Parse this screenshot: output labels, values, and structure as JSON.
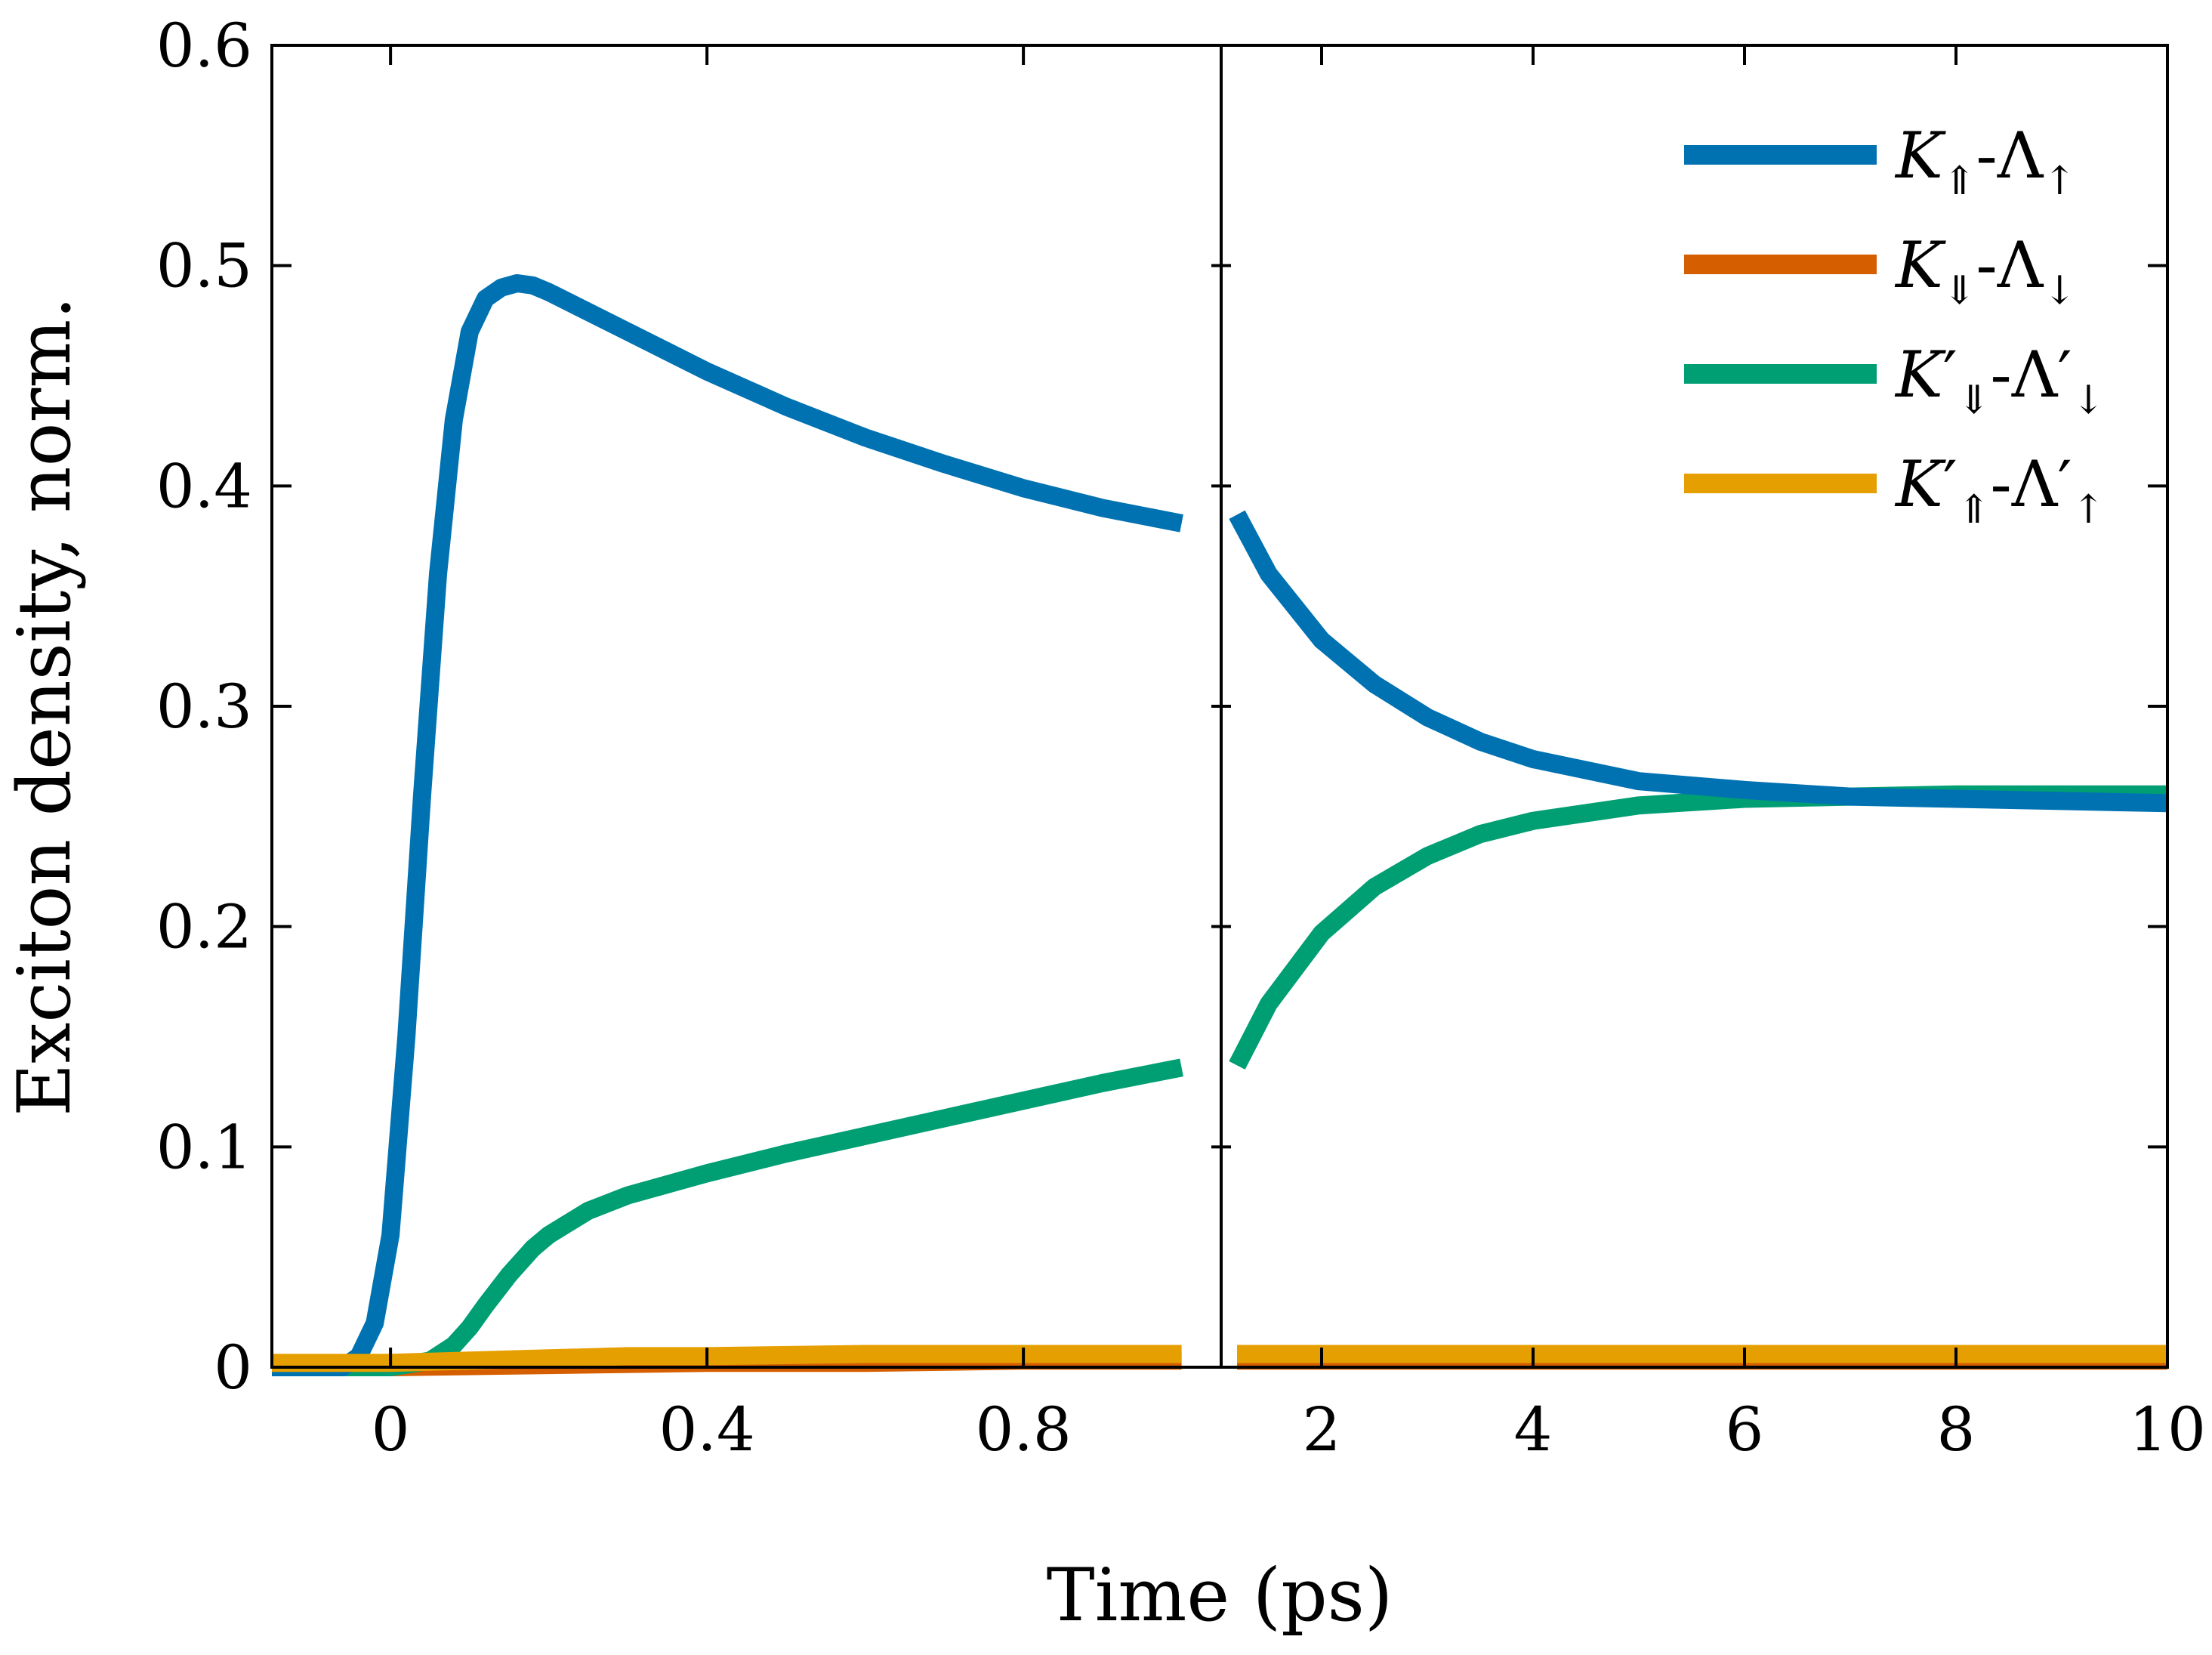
{
  "chart_data": {
    "type": "line",
    "xlabel": "Time (ps)",
    "ylabel": "Exciton density, norm.",
    "ylim": [
      0,
      0.6
    ],
    "yticks": [
      "0",
      "0.1",
      "0.2",
      "0.3",
      "0.4",
      "0.5",
      "0.6"
    ],
    "grid": false,
    "legend_position": "top-right",
    "panels": [
      {
        "name": "left",
        "xlim": [
          -0.15,
          1.05
        ],
        "xticks": [
          "0",
          "0.4",
          "0.8"
        ]
      },
      {
        "name": "right",
        "xlim": [
          1.05,
          10
        ],
        "xticks": [
          "2",
          "4",
          "6",
          "8",
          "10"
        ]
      }
    ],
    "series": [
      {
        "name": "K_⇑-Λ_↑",
        "legend": {
          "main1": "K",
          "sub1": "⇑",
          "mid": "-Λ",
          "sub2": "↑",
          "prime": false
        },
        "color": "#0072b2",
        "left_x": [
          -0.15,
          -0.1,
          -0.06,
          -0.04,
          -0.02,
          0.0,
          0.02,
          0.04,
          0.06,
          0.08,
          0.1,
          0.12,
          0.14,
          0.16,
          0.18,
          0.2,
          0.3,
          0.4,
          0.5,
          0.6,
          0.7,
          0.8,
          0.9,
          1.0
        ],
        "left_y": [
          0.0,
          0.0,
          0.0,
          0.005,
          0.02,
          0.06,
          0.15,
          0.26,
          0.36,
          0.43,
          0.47,
          0.485,
          0.49,
          0.492,
          0.491,
          0.488,
          0.47,
          0.452,
          0.436,
          0.422,
          0.41,
          0.399,
          0.39,
          0.383
        ],
        "right_x": [
          1.2,
          1.5,
          2.0,
          2.5,
          3.0,
          3.5,
          4.0,
          5.0,
          6.0,
          7.0,
          8.0,
          9.0,
          10.0
        ],
        "right_y": [
          0.387,
          0.36,
          0.33,
          0.31,
          0.295,
          0.284,
          0.276,
          0.266,
          0.262,
          0.259,
          0.258,
          0.257,
          0.256
        ]
      },
      {
        "name": "K_⇓-Λ_↓",
        "legend": {
          "main1": "K",
          "sub1": "⇓",
          "mid": "-Λ",
          "sub2": "↓",
          "prime": false
        },
        "color": "#d55e00",
        "left_x": [
          -0.15,
          0.0,
          0.2,
          0.4,
          0.6,
          0.8,
          1.0
        ],
        "left_y": [
          0.0,
          0.0,
          0.001,
          0.002,
          0.002,
          0.003,
          0.003
        ],
        "right_x": [
          1.2,
          4.0,
          10.0
        ],
        "right_y": [
          0.003,
          0.003,
          0.003
        ]
      },
      {
        "name": "K′_⇓-Λ′_↓",
        "legend": {
          "main1": "K",
          "sub1": "⇓",
          "mid": "-Λ",
          "sub2": "↓",
          "prime": true
        },
        "color": "#009e73",
        "left_x": [
          -0.15,
          0.0,
          0.05,
          0.08,
          0.1,
          0.12,
          0.15,
          0.18,
          0.2,
          0.25,
          0.3,
          0.4,
          0.5,
          0.6,
          0.7,
          0.8,
          0.9,
          1.0
        ],
        "left_y": [
          0.0,
          0.0,
          0.003,
          0.01,
          0.018,
          0.028,
          0.042,
          0.054,
          0.06,
          0.071,
          0.078,
          0.088,
          0.097,
          0.105,
          0.113,
          0.121,
          0.129,
          0.136
        ],
        "right_x": [
          1.2,
          1.5,
          2.0,
          2.5,
          3.0,
          3.5,
          4.0,
          5.0,
          6.0,
          7.0,
          8.0,
          9.0,
          10.0
        ],
        "right_y": [
          0.137,
          0.165,
          0.197,
          0.218,
          0.232,
          0.242,
          0.248,
          0.255,
          0.258,
          0.259,
          0.26,
          0.26,
          0.26
        ]
      },
      {
        "name": "K′_⇑-Λ′_↑",
        "legend": {
          "main1": "K",
          "sub1": "⇑",
          "mid": "-Λ",
          "sub2": "↑",
          "prime": true
        },
        "color": "#e69f00",
        "left_x": [
          -0.15,
          0.0,
          0.1,
          0.2,
          0.3,
          0.4,
          0.6,
          0.8,
          1.0
        ],
        "left_y": [
          0.002,
          0.002,
          0.003,
          0.004,
          0.005,
          0.005,
          0.006,
          0.006,
          0.006
        ],
        "right_x": [
          1.2,
          4.0,
          10.0
        ],
        "right_y": [
          0.006,
          0.006,
          0.006
        ]
      }
    ]
  }
}
